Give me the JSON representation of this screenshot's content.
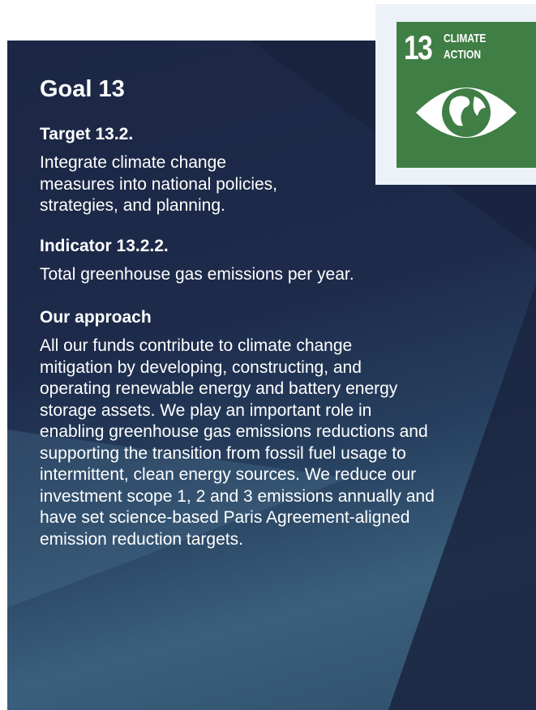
{
  "goal": "Goal 13",
  "icon": {
    "number": "13",
    "label": [
      "CLIMATE",
      "ACTION"
    ]
  },
  "sections": [
    {
      "heading": "Target 13.2.",
      "lines": [
        "Integrate climate change",
        "measures into national policies,",
        "strategies, and planning."
      ]
    },
    {
      "heading": "Indicator 13.2.2.",
      "lines": [
        "Total greenhouse gas emissions per year."
      ]
    },
    {
      "heading": "Our approach",
      "lines": [
        "All our funds contribute to climate change",
        "mitigation by developing, constructing, and",
        "operating renewable energy and battery energy",
        "storage assets. We play an important role in",
        "enabling greenhouse gas emissions reductions and",
        "supporting the transition from fossil fuel usage to",
        "intermittent, clean energy sources. We reduce our",
        "investment scope 1, 2 and 3 emissions annually and",
        "have set science-based Paris Agreement-aligned",
        "emission reduction targets."
      ]
    }
  ]
}
